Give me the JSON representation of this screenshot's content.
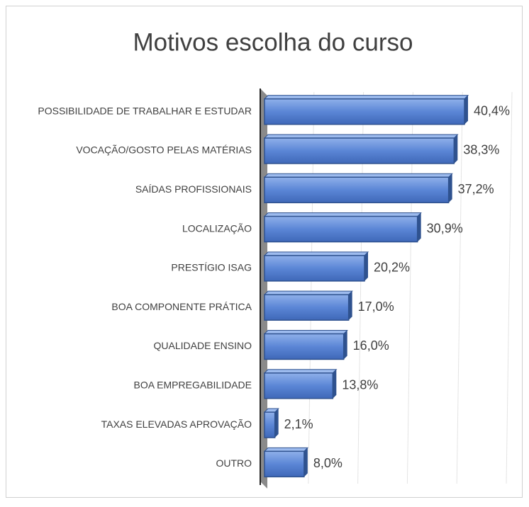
{
  "chart_data": {
    "type": "bar",
    "orientation": "horizontal",
    "title": "Motivos escolha do curso",
    "categories": [
      "POSSIBILIDADE DE TRABALHAR E ESTUDAR",
      "VOCAÇÃO/GOSTO PELAS MATÉRIAS",
      "SAÍDAS PROFISSIONAIS",
      "LOCALIZAÇÃO",
      "PRESTÍGIO ISAG",
      "BOA COMPONENTE PRÁTICA",
      "QUALIDADE ENSINO",
      "BOA EMPREGABILIDADE",
      "TAXAS ELEVADAS APROVAÇÃO",
      "OUTRO"
    ],
    "values": [
      40.4,
      38.3,
      37.2,
      30.9,
      20.2,
      17.0,
      16.0,
      13.8,
      2.1,
      8.0
    ],
    "value_labels": [
      "40,4%",
      "38,3%",
      "37,2%",
      "30,9%",
      "20,2%",
      "17,0%",
      "16,0%",
      "13,8%",
      "2,1%",
      "8,0%"
    ],
    "color": "#4472c4",
    "xlim": [
      0,
      50
    ],
    "xticks": [
      10,
      20,
      30,
      40,
      50
    ],
    "grid": true
  }
}
